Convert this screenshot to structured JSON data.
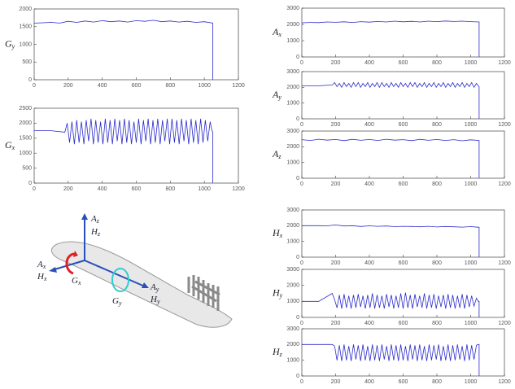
{
  "chart_data": [
    {
      "type": "line",
      "ylabel": {
        "symbol": "G",
        "subscript": "y"
      },
      "xlim": [
        0,
        1200
      ],
      "xticks": [
        0,
        200,
        400,
        600,
        800,
        1000,
        1200
      ],
      "ylim": [
        0,
        2000
      ],
      "yticks": [
        0,
        500,
        1000,
        1500,
        2000
      ],
      "color": "#2b2bcc",
      "x": [
        0,
        50,
        100,
        150,
        200,
        250,
        300,
        350,
        400,
        450,
        500,
        550,
        600,
        650,
        700,
        750,
        800,
        850,
        900,
        950,
        1000,
        1050,
        1050
      ],
      "values": [
        1600,
        1610,
        1620,
        1600,
        1650,
        1620,
        1660,
        1630,
        1670,
        1640,
        1660,
        1630,
        1670,
        1650,
        1680,
        1640,
        1660,
        1630,
        1650,
        1620,
        1640,
        1600,
        0
      ]
    },
    {
      "type": "line",
      "ylabel": {
        "symbol": "G",
        "subscript": "x"
      },
      "xlim": [
        0,
        1200
      ],
      "xticks": [
        0,
        200,
        400,
        600,
        800,
        1000,
        1200
      ],
      "ylim": [
        0,
        2500
      ],
      "yticks": [
        0,
        500,
        1000,
        1500,
        2000,
        2500
      ],
      "color": "#2b2bcc",
      "x": [
        0,
        100,
        180,
        194,
        208,
        222,
        236,
        250,
        264,
        278,
        292,
        306,
        320,
        334,
        348,
        362,
        376,
        390,
        404,
        418,
        432,
        446,
        460,
        474,
        488,
        502,
        516,
        530,
        544,
        558,
        572,
        586,
        600,
        614,
        628,
        642,
        656,
        670,
        684,
        698,
        712,
        726,
        740,
        754,
        768,
        782,
        796,
        810,
        824,
        838,
        852,
        866,
        880,
        894,
        908,
        922,
        936,
        950,
        964,
        978,
        992,
        1006,
        1020,
        1034,
        1045,
        1050,
        1050
      ],
      "values": [
        1750,
        1750,
        1700,
        2000,
        1350,
        2050,
        1300,
        2100,
        1350,
        2050,
        1300,
        2100,
        1400,
        2150,
        1300,
        2100,
        1350,
        2050,
        1300,
        2150,
        1350,
        2100,
        1300,
        2150,
        1400,
        2100,
        1300,
        2150,
        1350,
        2100,
        1300,
        2050,
        1350,
        2150,
        1300,
        2100,
        1400,
        2150,
        1300,
        2100,
        1350,
        2150,
        1300,
        2100,
        1400,
        2150,
        1300,
        2150,
        1350,
        2100,
        1300,
        2150,
        1400,
        2100,
        1300,
        2150,
        1350,
        2100,
        1300,
        2150,
        1350,
        2100,
        1400,
        2050,
        1750,
        1700,
        0
      ]
    },
    {
      "type": "line",
      "ylabel": {
        "symbol": "A",
        "subscript": "x"
      },
      "xlim": [
        0,
        1200
      ],
      "xticks": [
        0,
        200,
        400,
        600,
        800,
        1000,
        1200
      ],
      "ylim": [
        0,
        3000
      ],
      "yticks": [
        0,
        1000,
        2000,
        3000
      ],
      "color": "#2b2bcc",
      "x": [
        0,
        50,
        100,
        150,
        200,
        250,
        300,
        350,
        400,
        450,
        500,
        550,
        600,
        650,
        700,
        750,
        800,
        850,
        900,
        950,
        1000,
        1050,
        1050
      ],
      "values": [
        2100,
        2120,
        2110,
        2150,
        2130,
        2160,
        2120,
        2170,
        2140,
        2180,
        2150,
        2200,
        2160,
        2190,
        2150,
        2200,
        2170,
        2210,
        2180,
        2200,
        2170,
        2150,
        0
      ]
    },
    {
      "type": "line",
      "ylabel": {
        "symbol": "A",
        "subscript": "y"
      },
      "xlim": [
        0,
        1200
      ],
      "xticks": [
        0,
        200,
        400,
        600,
        800,
        1000,
        1200
      ],
      "ylim": [
        0,
        3000
      ],
      "yticks": [
        0,
        1000,
        2000,
        3000
      ],
      "color": "#2b2bcc",
      "x": [
        0,
        100,
        180,
        194,
        208,
        222,
        236,
        250,
        264,
        278,
        292,
        306,
        320,
        334,
        348,
        362,
        376,
        390,
        404,
        418,
        432,
        446,
        460,
        474,
        488,
        502,
        516,
        530,
        544,
        558,
        572,
        586,
        600,
        614,
        628,
        642,
        656,
        670,
        684,
        698,
        712,
        726,
        740,
        754,
        768,
        782,
        796,
        810,
        824,
        838,
        852,
        866,
        880,
        894,
        908,
        922,
        936,
        950,
        964,
        978,
        992,
        1006,
        1020,
        1034,
        1045,
        1050,
        1050
      ],
      "values": [
        2100,
        2100,
        2150,
        2300,
        2050,
        2250,
        2000,
        2300,
        2050,
        2250,
        2000,
        2300,
        2050,
        2300,
        2000,
        2250,
        2050,
        2300,
        2000,
        2250,
        2050,
        2300,
        2000,
        2300,
        2050,
        2250,
        2000,
        2300,
        2050,
        2250,
        2000,
        2300,
        2050,
        2250,
        2000,
        2300,
        2050,
        2300,
        2000,
        2250,
        2050,
        2300,
        2000,
        2250,
        2050,
        2300,
        2000,
        2250,
        2050,
        2300,
        2000,
        2250,
        2050,
        2300,
        2000,
        2250,
        2050,
        2300,
        2000,
        2250,
        2050,
        2300,
        2000,
        2250,
        2100,
        2050,
        0
      ]
    },
    {
      "type": "line",
      "ylabel": {
        "symbol": "A",
        "subscript": "z"
      },
      "xlim": [
        0,
        1200
      ],
      "xticks": [
        0,
        200,
        400,
        600,
        800,
        1000,
        1200
      ],
      "ylim": [
        0,
        3000
      ],
      "yticks": [
        0,
        1000,
        2000,
        3000
      ],
      "color": "#2b2bcc",
      "x": [
        0,
        50,
        100,
        150,
        200,
        250,
        300,
        350,
        400,
        450,
        500,
        550,
        600,
        650,
        700,
        750,
        800,
        850,
        900,
        950,
        1000,
        1050,
        1050
      ],
      "values": [
        2450,
        2400,
        2480,
        2420,
        2460,
        2390,
        2470,
        2410,
        2460,
        2400,
        2480,
        2420,
        2450,
        2390,
        2470,
        2410,
        2460,
        2400,
        2450,
        2380,
        2440,
        2400,
        0
      ]
    },
    {
      "type": "line",
      "ylabel": {
        "symbol": "H",
        "subscript": "x"
      },
      "xlim": [
        0,
        1200
      ],
      "xticks": [
        0,
        200,
        400,
        600,
        800,
        1000,
        1200
      ],
      "ylim": [
        0,
        3000
      ],
      "yticks": [
        0,
        1000,
        2000,
        3000
      ],
      "color": "#2b2bcc",
      "x": [
        0,
        50,
        100,
        150,
        200,
        250,
        300,
        350,
        400,
        450,
        500,
        550,
        600,
        650,
        700,
        750,
        800,
        850,
        900,
        950,
        1000,
        1050,
        1050
      ],
      "values": [
        2000,
        2000,
        2000,
        1990,
        2050,
        1980,
        2000,
        1950,
        1990,
        1960,
        1980,
        1940,
        1960,
        1950,
        1930,
        1960,
        1920,
        1950,
        1930,
        1910,
        1940,
        1900,
        0
      ]
    },
    {
      "type": "line",
      "ylabel": {
        "symbol": "H",
        "subscript": "y"
      },
      "xlim": [
        0,
        1200
      ],
      "xticks": [
        0,
        200,
        400,
        600,
        800,
        1000,
        1200
      ],
      "ylim": [
        0,
        3000
      ],
      "yticks": [
        0,
        1000,
        2000,
        3000
      ],
      "color": "#2b2bcc",
      "x": [
        0,
        100,
        180,
        194,
        208,
        222,
        236,
        250,
        264,
        278,
        292,
        306,
        320,
        334,
        348,
        362,
        376,
        390,
        404,
        418,
        432,
        446,
        460,
        474,
        488,
        502,
        516,
        530,
        544,
        558,
        572,
        586,
        600,
        614,
        628,
        642,
        656,
        670,
        684,
        698,
        712,
        726,
        740,
        754,
        768,
        782,
        796,
        810,
        824,
        838,
        852,
        866,
        880,
        894,
        908,
        922,
        936,
        950,
        964,
        978,
        992,
        1006,
        1020,
        1034,
        1045,
        1050,
        1050
      ],
      "values": [
        1000,
        1000,
        1500,
        1100,
        600,
        1400,
        550,
        1450,
        600,
        1350,
        550,
        1400,
        600,
        1450,
        650,
        1350,
        550,
        1400,
        600,
        1500,
        550,
        1400,
        600,
        1350,
        550,
        1450,
        650,
        1400,
        550,
        1350,
        600,
        1500,
        550,
        1550,
        600,
        1400,
        550,
        1450,
        650,
        1350,
        600,
        1500,
        550,
        1400,
        600,
        1450,
        550,
        1350,
        650,
        1400,
        550,
        1450,
        600,
        1400,
        550,
        1350,
        600,
        1450,
        550,
        1400,
        650,
        1350,
        700,
        1200,
        1000,
        1000,
        0
      ]
    },
    {
      "type": "line",
      "ylabel": {
        "symbol": "H",
        "subscript": "z"
      },
      "xlim": [
        0,
        1200
      ],
      "xticks": [
        0,
        200,
        400,
        600,
        800,
        1000,
        1200
      ],
      "ylim": [
        0,
        3000
      ],
      "yticks": [
        0,
        1000,
        2000,
        3000
      ],
      "color": "#2b2bcc",
      "x": [
        0,
        100,
        180,
        194,
        208,
        222,
        236,
        250,
        264,
        278,
        292,
        306,
        320,
        334,
        348,
        362,
        376,
        390,
        404,
        418,
        432,
        446,
        460,
        474,
        488,
        502,
        516,
        530,
        544,
        558,
        572,
        586,
        600,
        614,
        628,
        642,
        656,
        670,
        684,
        698,
        712,
        726,
        740,
        754,
        768,
        782,
        796,
        810,
        824,
        838,
        852,
        866,
        880,
        894,
        908,
        922,
        936,
        950,
        964,
        978,
        992,
        1006,
        1020,
        1034,
        1045,
        1050,
        1050
      ],
      "values": [
        2000,
        2000,
        2000,
        1900,
        1000,
        1950,
        950,
        2000,
        1000,
        1900,
        950,
        2000,
        1050,
        1950,
        950,
        2000,
        1000,
        1900,
        950,
        2000,
        1000,
        1950,
        950,
        2000,
        1050,
        1900,
        950,
        2000,
        1000,
        1950,
        950,
        2000,
        1000,
        1900,
        950,
        2000,
        1050,
        1950,
        950,
        2000,
        1000,
        1900,
        950,
        2000,
        1000,
        1950,
        1050,
        2000,
        950,
        1900,
        1000,
        2000,
        950,
        1950,
        1000,
        2000,
        1050,
        1900,
        950,
        2000,
        1000,
        1950,
        1050,
        1950,
        2000,
        2000,
        0
      ]
    }
  ],
  "diagram": {
    "labels": [
      {
        "symbol": "A",
        "subscript": "z"
      },
      {
        "symbol": "H",
        "subscript": "z"
      },
      {
        "symbol": "A",
        "subscript": "x"
      },
      {
        "symbol": "H",
        "subscript": "x"
      },
      {
        "symbol": "G",
        "subscript": "x"
      },
      {
        "symbol": "G",
        "subscript": "y"
      },
      {
        "symbol": "A",
        "subscript": "y"
      },
      {
        "symbol": "H",
        "subscript": "y"
      }
    ]
  }
}
